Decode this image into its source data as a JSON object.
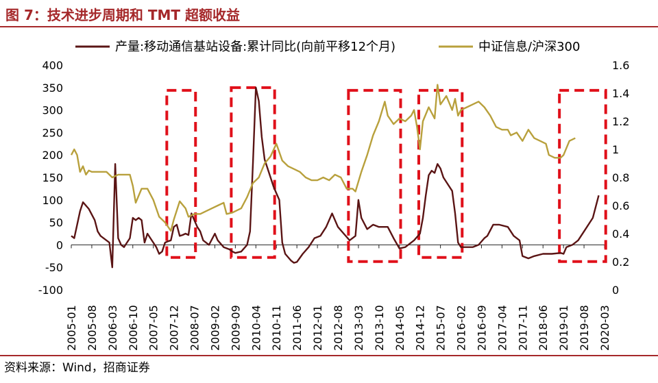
{
  "figure": {
    "title": "图 7：技术进步周期和 TMT 超额收益",
    "source": "资料来源：Wind，招商证券"
  },
  "chart_data": {
    "type": "line",
    "title": "",
    "xlabel": "",
    "ylabel_left": "",
    "ylabel_right": "",
    "x_ticks": [
      "2005-01",
      "2005-08",
      "2006-03",
      "2006-10",
      "2007-05",
      "2007-12",
      "2008-07",
      "2009-02",
      "2009-09",
      "2010-04",
      "2010-11",
      "2011-06",
      "2012-01",
      "2012-08",
      "2013-03",
      "2013-10",
      "2014-05",
      "2014-12",
      "2015-07",
      "2016-02",
      "2016-09",
      "2017-04",
      "2017-11",
      "2018-06",
      "2019-01",
      "2019-08",
      "2020-03"
    ],
    "y_left": {
      "min": -100,
      "max": 400,
      "ticks": [
        "-100",
        "-50",
        "0",
        "50",
        "100",
        "150",
        "200",
        "250",
        "300",
        "350",
        "400"
      ]
    },
    "y_right": {
      "min": 0,
      "max": 1.6,
      "ticks": [
        "0",
        "0.2",
        "0.4",
        "0.6",
        "0.8",
        "1",
        "1.2",
        "1.4",
        "1.6"
      ]
    },
    "legend_position": "top",
    "series": [
      {
        "name": "产量:移动通信基站设备:累计同比(向前平移12个月)",
        "axis": "left",
        "color": "#5a1414",
        "points": [
          [
            "2005-01",
            20
          ],
          [
            "2005-02",
            15
          ],
          [
            "2005-04",
            75
          ],
          [
            "2005-05",
            95
          ],
          [
            "2005-07",
            80
          ],
          [
            "2005-09",
            55
          ],
          [
            "2005-10",
            30
          ],
          [
            "2005-11",
            20
          ],
          [
            "2006-01",
            10
          ],
          [
            "2006-02",
            5
          ],
          [
            "2006-03",
            -50
          ],
          [
            "2006-04",
            180
          ],
          [
            "2006-05",
            15
          ],
          [
            "2006-06",
            0
          ],
          [
            "2006-07",
            -5
          ],
          [
            "2006-08",
            5
          ],
          [
            "2006-09",
            15
          ],
          [
            "2006-10",
            60
          ],
          [
            "2006-11",
            55
          ],
          [
            "2006-12",
            60
          ],
          [
            "2007-01",
            55
          ],
          [
            "2007-02",
            5
          ],
          [
            "2007-03",
            25
          ],
          [
            "2007-04",
            15
          ],
          [
            "2007-05",
            5
          ],
          [
            "2007-06",
            -5
          ],
          [
            "2007-07",
            -20
          ],
          [
            "2007-08",
            -15
          ],
          [
            "2007-09",
            5
          ],
          [
            "2007-10",
            8
          ],
          [
            "2007-11",
            10
          ],
          [
            "2007-12",
            40
          ],
          [
            "2008-01",
            45
          ],
          [
            "2008-02",
            20
          ],
          [
            "2008-03",
            22
          ],
          [
            "2008-04",
            25
          ],
          [
            "2008-05",
            22
          ],
          [
            "2008-06",
            70
          ],
          [
            "2008-07",
            55
          ],
          [
            "2008-08",
            40
          ],
          [
            "2008-09",
            30
          ],
          [
            "2008-10",
            10
          ],
          [
            "2008-11",
            5
          ],
          [
            "2008-12",
            0
          ],
          [
            "2009-02",
            25
          ],
          [
            "2009-03",
            10
          ],
          [
            "2009-05",
            -5
          ],
          [
            "2009-07",
            -10
          ],
          [
            "2009-08",
            -15
          ],
          [
            "2009-09",
            -18
          ],
          [
            "2009-11",
            -15
          ],
          [
            "2010-01",
            0
          ],
          [
            "2010-02",
            30
          ],
          [
            "2010-03",
            180
          ],
          [
            "2010-04",
            350
          ],
          [
            "2010-05",
            320
          ],
          [
            "2010-06",
            240
          ],
          [
            "2010-07",
            190
          ],
          [
            "2010-08",
            170
          ],
          [
            "2010-09",
            150
          ],
          [
            "2010-10",
            130
          ],
          [
            "2010-11",
            115
          ],
          [
            "2010-12",
            100
          ],
          [
            "2011-01",
            5
          ],
          [
            "2011-02",
            -20
          ],
          [
            "2011-04",
            -35
          ],
          [
            "2011-05",
            -40
          ],
          [
            "2011-06",
            -38
          ],
          [
            "2011-08",
            -20
          ],
          [
            "2011-10",
            -5
          ],
          [
            "2011-12",
            15
          ],
          [
            "2012-02",
            20
          ],
          [
            "2012-04",
            40
          ],
          [
            "2012-06",
            70
          ],
          [
            "2012-08",
            40
          ],
          [
            "2012-10",
            25
          ],
          [
            "2012-12",
            10
          ],
          [
            "2013-02",
            20
          ],
          [
            "2013-03",
            100
          ],
          [
            "2013-04",
            60
          ],
          [
            "2013-06",
            35
          ],
          [
            "2013-08",
            45
          ],
          [
            "2013-10",
            40
          ],
          [
            "2014-01",
            40
          ],
          [
            "2014-03",
            15
          ],
          [
            "2014-05",
            -8
          ],
          [
            "2014-07",
            -5
          ],
          [
            "2014-10",
            10
          ],
          [
            "2014-12",
            25
          ],
          [
            "2015-01",
            60
          ],
          [
            "2015-02",
            110
          ],
          [
            "2015-03",
            155
          ],
          [
            "2015-04",
            165
          ],
          [
            "2015-05",
            160
          ],
          [
            "2015-06",
            180
          ],
          [
            "2015-07",
            170
          ],
          [
            "2015-08",
            150
          ],
          [
            "2015-09",
            140
          ],
          [
            "2015-11",
            120
          ],
          [
            "2015-12",
            70
          ],
          [
            "2016-01",
            5
          ],
          [
            "2016-02",
            -5
          ],
          [
            "2016-04",
            -5
          ],
          [
            "2016-06",
            -5
          ],
          [
            "2016-08",
            0
          ],
          [
            "2016-10",
            15
          ],
          [
            "2016-11",
            20
          ],
          [
            "2017-01",
            45
          ],
          [
            "2017-03",
            45
          ],
          [
            "2017-06",
            40
          ],
          [
            "2017-08",
            20
          ],
          [
            "2017-10",
            10
          ],
          [
            "2017-11",
            -25
          ],
          [
            "2018-01",
            -30
          ],
          [
            "2018-03",
            -25
          ],
          [
            "2018-06",
            -20
          ],
          [
            "2018-09",
            -20
          ],
          [
            "2018-12",
            -18
          ],
          [
            "2019-01",
            -20
          ],
          [
            "2019-02",
            -5
          ],
          [
            "2019-04",
            0
          ],
          [
            "2019-06",
            10
          ],
          [
            "2019-08",
            30
          ],
          [
            "2019-10",
            50
          ],
          [
            "2019-11",
            60
          ],
          [
            "2019-12",
            85
          ],
          [
            "2020-01",
            110
          ]
        ]
      },
      {
        "name": "中证信息/沪深300",
        "axis": "right",
        "color": "#b8a03c",
        "points": [
          [
            "2005-01",
            0.96
          ],
          [
            "2005-02",
            1.0
          ],
          [
            "2005-03",
            0.96
          ],
          [
            "2005-04",
            0.84
          ],
          [
            "2005-05",
            0.88
          ],
          [
            "2005-06",
            0.82
          ],
          [
            "2005-07",
            0.85
          ],
          [
            "2005-08",
            0.84
          ],
          [
            "2005-10",
            0.84
          ],
          [
            "2006-01",
            0.84
          ],
          [
            "2006-03",
            0.8
          ],
          [
            "2006-05",
            0.82
          ],
          [
            "2006-07",
            0.82
          ],
          [
            "2006-09",
            0.82
          ],
          [
            "2006-10",
            0.74
          ],
          [
            "2006-11",
            0.62
          ],
          [
            "2007-01",
            0.72
          ],
          [
            "2007-03",
            0.72
          ],
          [
            "2007-05",
            0.64
          ],
          [
            "2007-07",
            0.52
          ],
          [
            "2007-09",
            0.48
          ],
          [
            "2007-11",
            0.42
          ],
          [
            "2007-12",
            0.5
          ],
          [
            "2008-02",
            0.63
          ],
          [
            "2008-04",
            0.58
          ],
          [
            "2008-05",
            0.52
          ],
          [
            "2008-07",
            0.54
          ],
          [
            "2008-09",
            0.54
          ],
          [
            "2008-11",
            0.56
          ],
          [
            "2009-01",
            0.58
          ],
          [
            "2009-03",
            0.6
          ],
          [
            "2009-05",
            0.62
          ],
          [
            "2009-06",
            0.54
          ],
          [
            "2009-08",
            0.55
          ],
          [
            "2009-09",
            0.56
          ],
          [
            "2009-11",
            0.58
          ],
          [
            "2010-01",
            0.66
          ],
          [
            "2010-03",
            0.76
          ],
          [
            "2010-05",
            0.8
          ],
          [
            "2010-07",
            0.9
          ],
          [
            "2010-09",
            0.95
          ],
          [
            "2010-11",
            1.04
          ],
          [
            "2011-01",
            0.92
          ],
          [
            "2011-03",
            0.88
          ],
          [
            "2011-05",
            0.86
          ],
          [
            "2011-07",
            0.84
          ],
          [
            "2011-09",
            0.8
          ],
          [
            "2011-11",
            0.78
          ],
          [
            "2012-01",
            0.78
          ],
          [
            "2012-03",
            0.8
          ],
          [
            "2012-05",
            0.78
          ],
          [
            "2012-07",
            0.82
          ],
          [
            "2012-09",
            0.8
          ],
          [
            "2012-11",
            0.72
          ],
          [
            "2013-01",
            0.72
          ],
          [
            "2013-02",
            0.7
          ],
          [
            "2013-04",
            0.84
          ],
          [
            "2013-06",
            0.96
          ],
          [
            "2013-08",
            1.1
          ],
          [
            "2013-10",
            1.2
          ],
          [
            "2013-12",
            1.34
          ],
          [
            "2014-01",
            1.24
          ],
          [
            "2014-03",
            1.18
          ],
          [
            "2014-05",
            1.22
          ],
          [
            "2014-07",
            1.2
          ],
          [
            "2014-09",
            1.24
          ],
          [
            "2014-10",
            1.28
          ],
          [
            "2014-11",
            1.16
          ],
          [
            "2014-12",
            1.0
          ],
          [
            "2015-01",
            1.2
          ],
          [
            "2015-03",
            1.3
          ],
          [
            "2015-05",
            1.22
          ],
          [
            "2015-06",
            1.46
          ],
          [
            "2015-07",
            1.32
          ],
          [
            "2015-09",
            1.38
          ],
          [
            "2015-11",
            1.28
          ],
          [
            "2015-12",
            1.36
          ],
          [
            "2016-01",
            1.24
          ],
          [
            "2016-02",
            1.28
          ],
          [
            "2016-04",
            1.3
          ],
          [
            "2016-06",
            1.32
          ],
          [
            "2016-08",
            1.34
          ],
          [
            "2016-10",
            1.3
          ],
          [
            "2016-12",
            1.24
          ],
          [
            "2017-02",
            1.16
          ],
          [
            "2017-04",
            1.14
          ],
          [
            "2017-06",
            1.14
          ],
          [
            "2017-07",
            1.1
          ],
          [
            "2017-09",
            1.12
          ],
          [
            "2017-11",
            1.06
          ],
          [
            "2018-01",
            1.14
          ],
          [
            "2018-03",
            1.08
          ],
          [
            "2018-05",
            1.06
          ],
          [
            "2018-07",
            1.04
          ],
          [
            "2018-08",
            0.96
          ],
          [
            "2018-10",
            0.94
          ],
          [
            "2018-12",
            0.94
          ],
          [
            "2019-01",
            0.96
          ],
          [
            "2019-03",
            1.06
          ],
          [
            "2019-05",
            1.08
          ]
        ]
      }
    ],
    "highlight_boxes": [
      {
        "from": "2007-11",
        "to": "2008-06"
      },
      {
        "from": "2009-09",
        "to": "2010-09"
      },
      {
        "from": "2013-01",
        "to": "2014-04"
      },
      {
        "from": "2015-01",
        "to": "2016-01"
      },
      {
        "from": "2019-01",
        "to": "2020-02"
      }
    ]
  }
}
